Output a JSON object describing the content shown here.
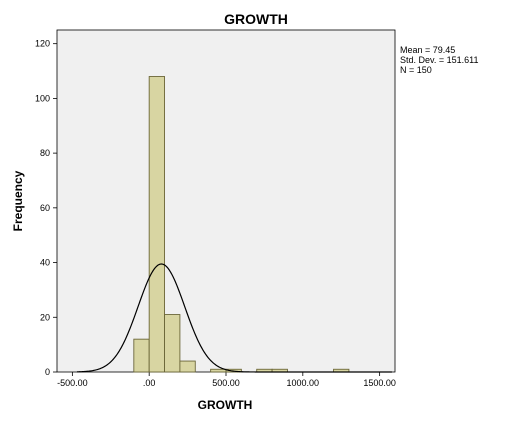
{
  "chart_data": {
    "type": "bar",
    "title": "GROWTH",
    "xlabel": "GROWTH",
    "ylabel": "Frequency",
    "xlim": [
      -600,
      1600
    ],
    "ylim": [
      0,
      125
    ],
    "x_ticks": [
      -500,
      0,
      500,
      1000,
      1500
    ],
    "x_tick_labels": [
      "-500.00",
      ".00",
      "500.00",
      "1000.00",
      "1500.00"
    ],
    "y_ticks": [
      0,
      20,
      40,
      60,
      80,
      100,
      120
    ],
    "y_tick_labels": [
      "0",
      "20",
      "40",
      "60",
      "80",
      "100",
      "120"
    ],
    "bin_width": 100,
    "bins": [
      {
        "start": -100,
        "count": 12
      },
      {
        "start": 0,
        "count": 108
      },
      {
        "start": 100,
        "count": 21
      },
      {
        "start": 200,
        "count": 4
      },
      {
        "start": 400,
        "count": 1
      },
      {
        "start": 500,
        "count": 1
      },
      {
        "start": 700,
        "count": 1
      },
      {
        "start": 800,
        "count": 1
      },
      {
        "start": 1200,
        "count": 1
      }
    ],
    "normal_curve": {
      "mean": 79.45,
      "sd": 151.611,
      "n": 150
    },
    "stats": {
      "mean_label": "Mean = 79.45",
      "sd_label": "Std. Dev. = 151.611",
      "n_label": "N = 150"
    },
    "grid": false,
    "bar_color": "#d8d5a2",
    "bar_edge_color": "#6b6638",
    "curve_color": "#000000",
    "plot_background": "#f0f0f0"
  }
}
